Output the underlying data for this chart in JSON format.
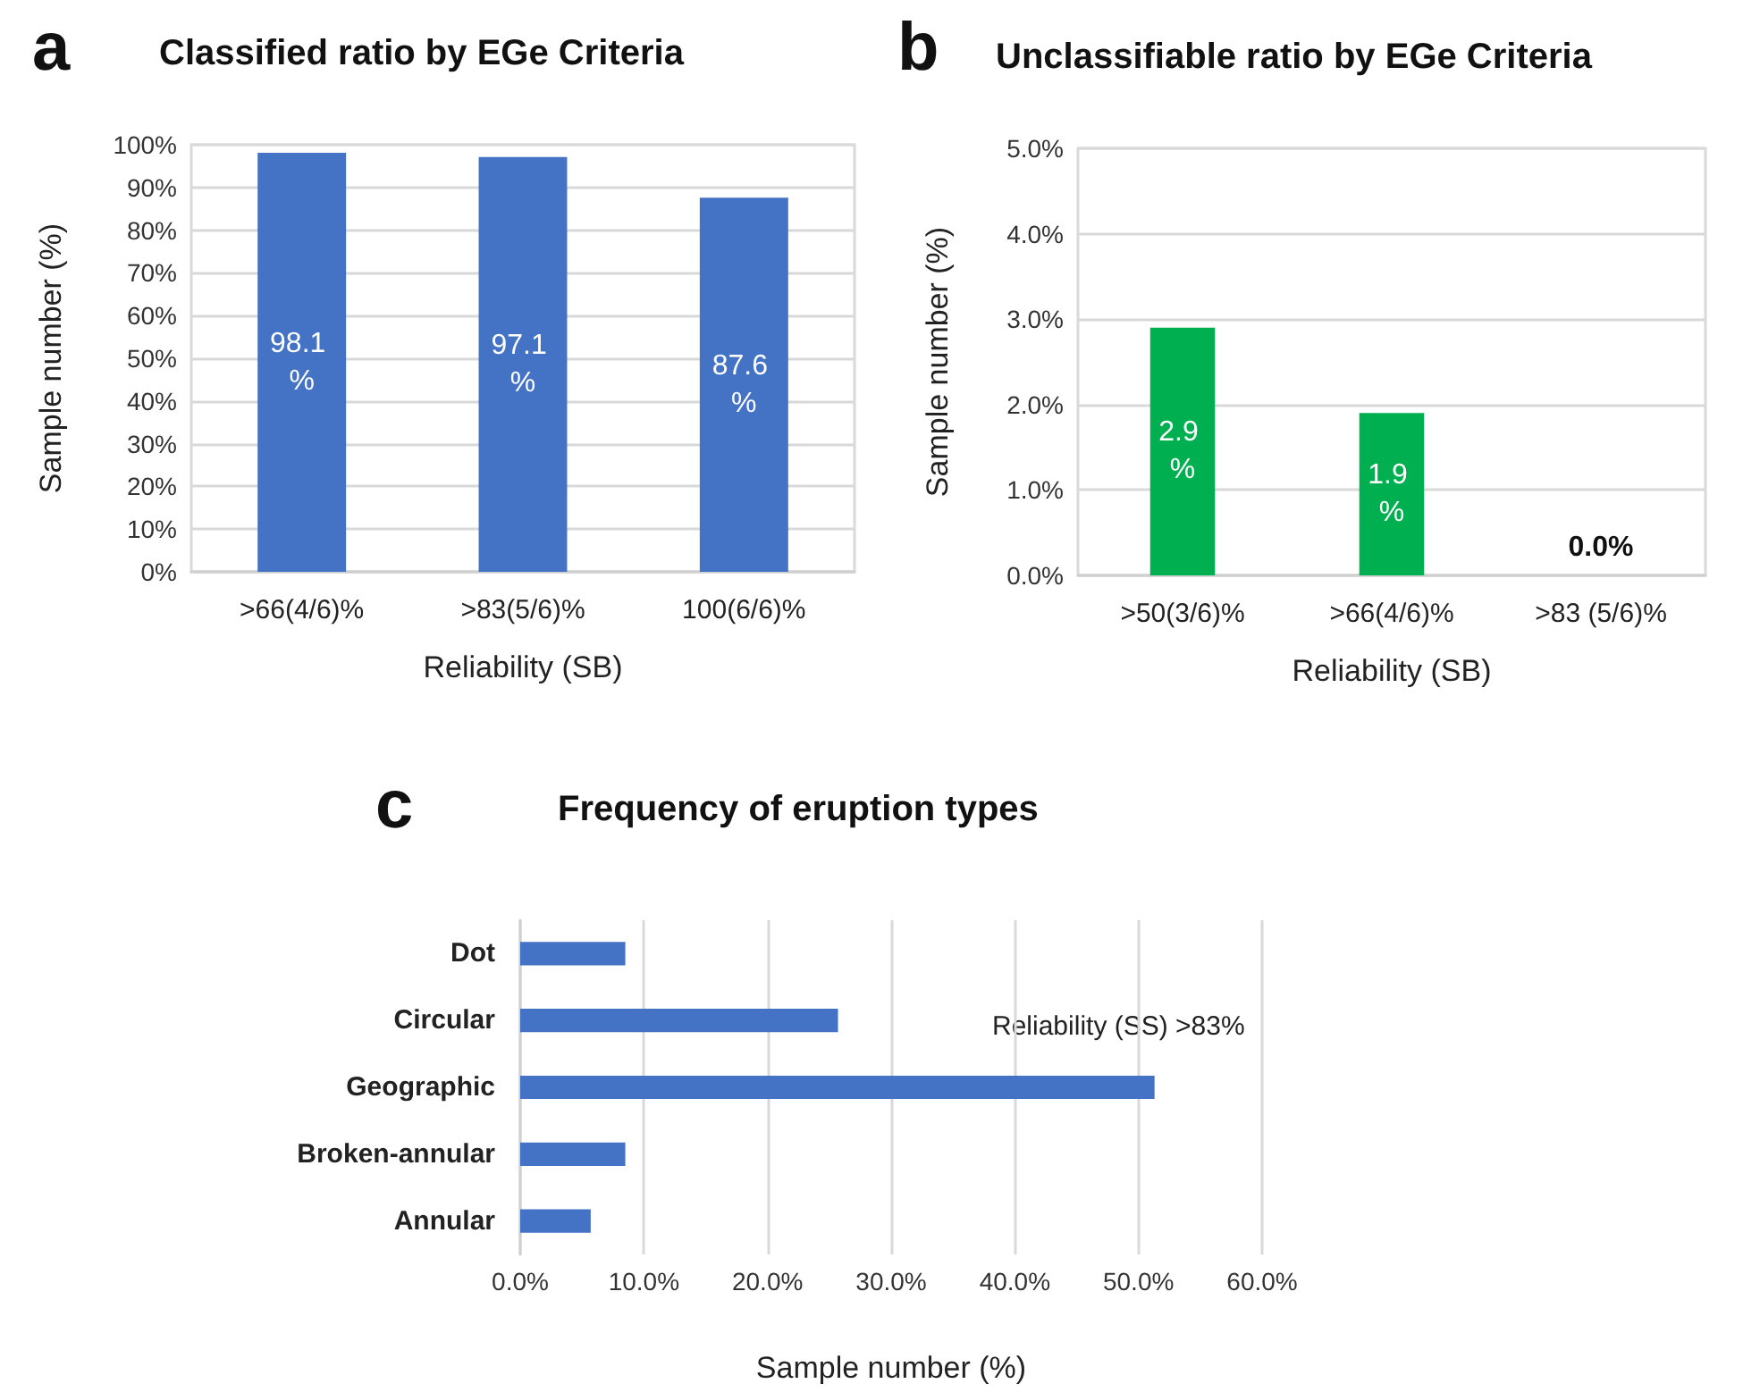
{
  "chart_data": [
    {
      "type": "bar",
      "title": "Classified ratio by EGe Criteria",
      "annotations": [
        "a"
      ],
      "xlabel": "Reliability (SB)",
      "ylabel": "Sample number (%)",
      "categories": [
        ">66(4/6)%",
        ">83(5/6)%",
        "100(6/6)%"
      ],
      "values": [
        98.1,
        97.1,
        87.6
      ],
      "value_labels": [
        "98.1 %",
        "97.1 %",
        "87.6 %"
      ],
      "color": "#4472c4",
      "ylim": [
        0,
        100
      ],
      "yticks": [
        {
          "value": 0,
          "label": "0%"
        },
        {
          "value": 10,
          "label": "10%"
        },
        {
          "value": 20,
          "label": "20%"
        },
        {
          "value": 30,
          "label": "30%"
        },
        {
          "value": 40,
          "label": "40%"
        },
        {
          "value": 50,
          "label": "50%"
        },
        {
          "value": 60,
          "label": "60%"
        },
        {
          "value": 70,
          "label": "70%"
        },
        {
          "value": 80,
          "label": "80%"
        },
        {
          "value": 90,
          "label": "90%"
        },
        {
          "value": 100,
          "label": "100%"
        }
      ],
      "grid": "y"
    },
    {
      "type": "bar",
      "title": "Unclassifiable ratio by EGe Criteria",
      "annotations": [
        "b"
      ],
      "xlabel": "Reliability (SB)",
      "ylabel": "Sample number (%)",
      "categories": [
        ">50(3/6)%",
        ">66(4/6)%",
        ">83 (5/6)%"
      ],
      "values": [
        2.9,
        1.9,
        0.0
      ],
      "value_labels": [
        "2.9 %",
        "1.9 %",
        "0.0%"
      ],
      "color": "#00b050",
      "ylim": [
        0,
        5
      ],
      "yticks": [
        {
          "value": 0,
          "label": "0.0%"
        },
        {
          "value": 1,
          "label": "1.0%"
        },
        {
          "value": 2,
          "label": "2.0%"
        },
        {
          "value": 3,
          "label": "3.0%"
        },
        {
          "value": 4,
          "label": "4.0%"
        },
        {
          "value": 5,
          "label": "5.0%"
        }
      ],
      "grid": "y"
    },
    {
      "type": "bar",
      "orientation": "horizontal",
      "title": "Frequency of eruption types",
      "annotations": [
        "c",
        "Reliability (SS) >83%"
      ],
      "xlabel": "Sample number (%)",
      "categories": [
        "Dot",
        "Circular",
        "Geographic",
        "Broken-annular",
        "Annular"
      ],
      "values": [
        8.5,
        25.7,
        51.3,
        8.5,
        5.7
      ],
      "color": "#4472c4",
      "xlim": [
        0,
        60
      ],
      "xticks": [
        {
          "value": 0,
          "label": "0.0%"
        },
        {
          "value": 10,
          "label": "10.0%"
        },
        {
          "value": 20,
          "label": "20.0%"
        },
        {
          "value": 30,
          "label": "30.0%"
        },
        {
          "value": 40,
          "label": "40.0%"
        },
        {
          "value": 50,
          "label": "50.0%"
        },
        {
          "value": 60,
          "label": "60.0%"
        }
      ],
      "grid": "x"
    }
  ]
}
